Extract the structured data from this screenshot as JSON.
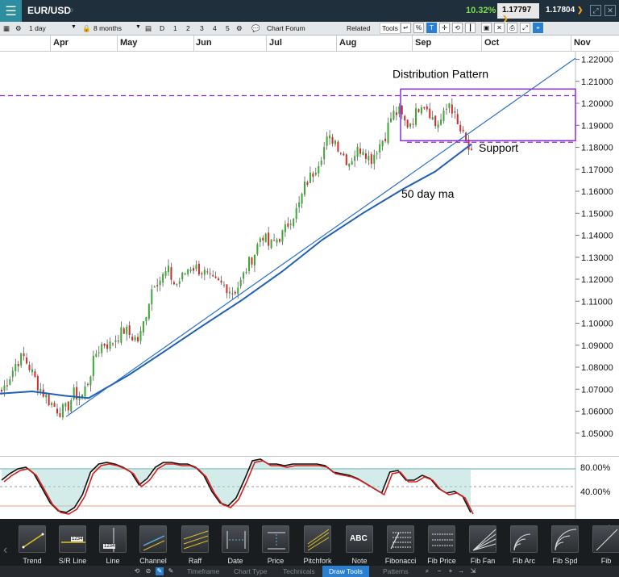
{
  "header": {
    "menu_icon": "hamburger-icon",
    "symbol": "EUR/USD",
    "search_icon": "search-icon",
    "change": "10.32%",
    "bid": "1.17797",
    "ask": "1.17804"
  },
  "toolbar": {
    "interval": "1 day",
    "range": "8 months",
    "zoom_buttons": [
      "D",
      "1",
      "2",
      "3",
      "4",
      "5"
    ],
    "forum": "Chart Forum",
    "related": "Related",
    "tools": "Tools",
    "percent": "%",
    "text_tool": "T"
  },
  "months": [
    "Apr",
    "May",
    "Jun",
    "Jul",
    "Aug",
    "Sep",
    "Oct",
    "Nov"
  ],
  "chart_data": {
    "type": "candlestick",
    "y_ticks": [
      "1.22000",
      "1.21000",
      "1.20000",
      "1.19000",
      "1.18000",
      "1.17000",
      "1.16000",
      "1.15000",
      "1.14000",
      "1.13000",
      "1.12000",
      "1.11000",
      "1.10000",
      "1.09000",
      "1.08000",
      "1.07000",
      "1.06000",
      "1.05000"
    ],
    "ylim": [
      1.04,
      1.2235
    ],
    "annotations": {
      "distribution": "Distribution Pattern",
      "support": "Support",
      "ma": "50 day ma"
    },
    "close_path": [
      1.069,
      1.075,
      1.082,
      1.085,
      1.079,
      1.072,
      1.067,
      1.063,
      1.06,
      1.061,
      1.068,
      1.066,
      1.074,
      1.086,
      1.091,
      1.09,
      1.094,
      1.097,
      1.094,
      1.092,
      1.105,
      1.119,
      1.12,
      1.124,
      1.117,
      1.121,
      1.126,
      1.125,
      1.123,
      1.119,
      1.118,
      1.117,
      1.114,
      1.118,
      1.126,
      1.132,
      1.141,
      1.135,
      1.138,
      1.141,
      1.148,
      1.152,
      1.163,
      1.168,
      1.175,
      1.183,
      1.184,
      1.178,
      1.173,
      1.178,
      1.18,
      1.174,
      1.18,
      1.185,
      1.195,
      1.196,
      1.19,
      1.193,
      1.201,
      1.198,
      1.19,
      1.193,
      1.201,
      1.19,
      1.184,
      1.176
    ],
    "stochastic": {
      "levels": [
        "80.00%",
        "40.00%"
      ]
    }
  },
  "draw_tools": [
    "Trend",
    "S/R Line",
    "Line",
    "Channel",
    "Raff",
    "Date",
    "Price",
    "Pitchfork",
    "Note",
    "Fibonacci",
    "Fib Price",
    "Fib Fan",
    "Fib Arc",
    "Fib Spd",
    "Fib"
  ],
  "draw_tool_badges": {
    "sr": "1234",
    "line": "1234",
    "note": "ABC"
  },
  "tabs": [
    "Timeframe",
    "Chart Type",
    "Technicals",
    "Draw Tools",
    "Patterns"
  ]
}
